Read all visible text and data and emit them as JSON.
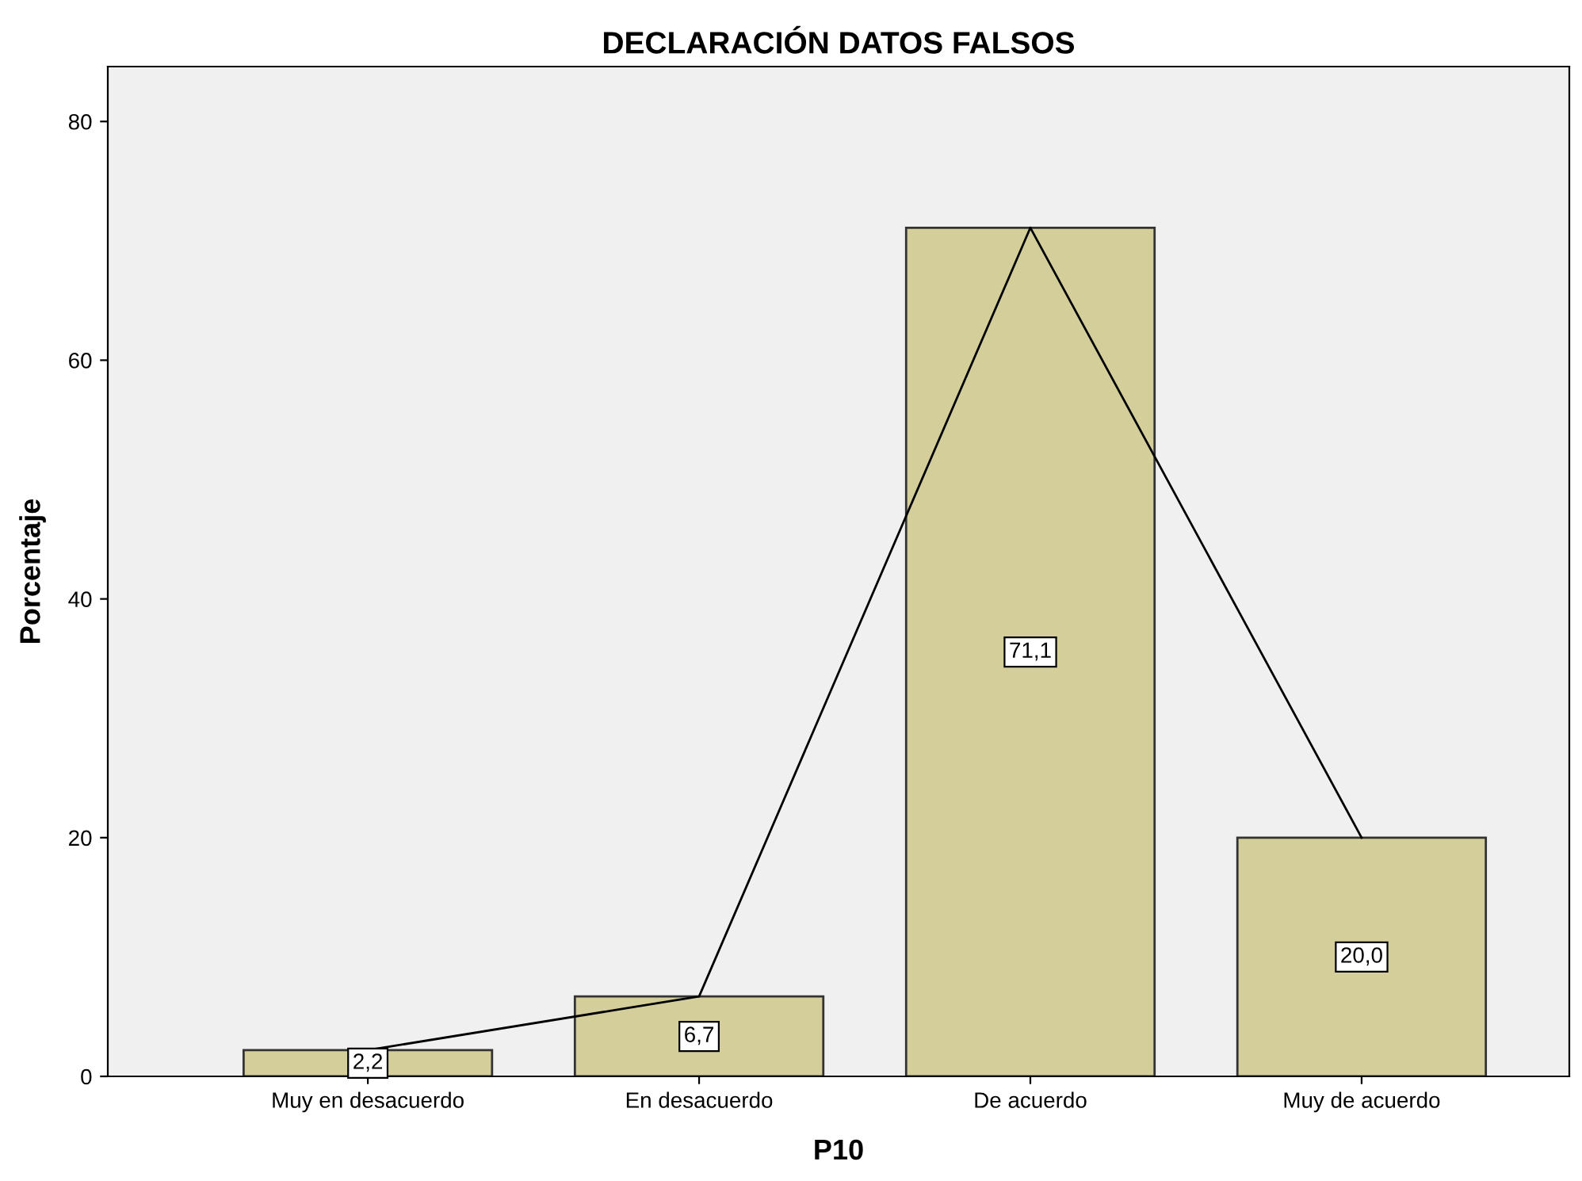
{
  "chart_data": {
    "type": "bar",
    "title": "DECLARACIÓN DATOS FALSOS",
    "xlabel": "P10",
    "ylabel": "Porcentaje",
    "categories": [
      "Muy en desacuerdo",
      "En desacuerdo",
      "De acuerdo",
      "Muy de acuerdo"
    ],
    "series": [
      {
        "color": "#d3ce9a",
        "values": [
          2.2,
          6.7,
          71.1,
          20.0
        ],
        "value_labels": [
          "2,2",
          "6,7",
          "71,1",
          "20,0"
        ]
      },
      {
        "type": "line",
        "color": "#000000",
        "values": [
          2.2,
          6.7,
          71.1,
          20.0
        ],
        "marker": "none"
      }
    ],
    "ylim": [
      0,
      84.6
    ],
    "yticks": [
      0,
      20,
      40,
      60,
      80
    ],
    "grid": false,
    "legend": false
  }
}
